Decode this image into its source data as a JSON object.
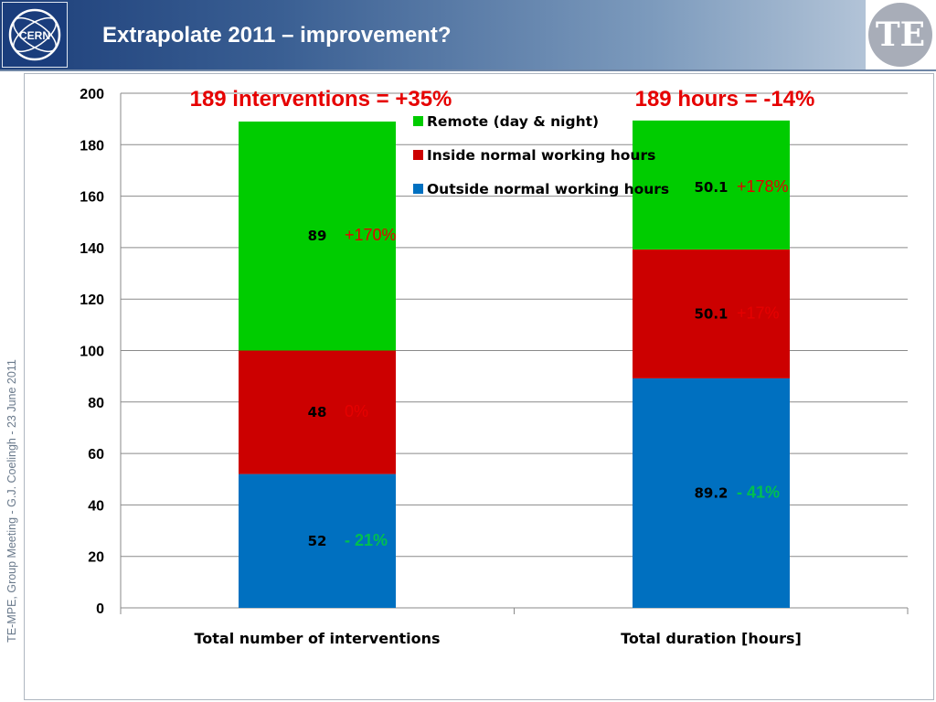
{
  "header": {
    "title": "Extrapolate 2011 – improvement?",
    "cern_logo_text": "CERN",
    "te_logo_text": "TE"
  },
  "sidebar": {
    "footer_text": "TE-MPE, Group Meeting - G.J. Coelingh -  23 June 2011"
  },
  "colors": {
    "remote": "#00cc00",
    "inside": "#cc0000",
    "outside": "#0070c0",
    "annotation_red": "#e60000",
    "annotation_green": "#00c050"
  },
  "chart_data": {
    "type": "bar",
    "stacked": true,
    "categories": [
      "Total number of interventions",
      "Total duration [hours]"
    ],
    "series": [
      {
        "name": "Outside normal working hours",
        "values": [
          52,
          89.2
        ],
        "labels": [
          "52",
          "89.2"
        ],
        "changes": [
          "- 21%",
          "- 41%"
        ]
      },
      {
        "name": "Inside normal working hours",
        "values": [
          48,
          50.1
        ],
        "labels": [
          "48",
          "50.1"
        ],
        "changes": [
          "0%",
          "+17%"
        ]
      },
      {
        "name": "Remote (day & night)",
        "values": [
          89,
          50.1
        ],
        "labels": [
          "89",
          "50.1"
        ],
        "changes": [
          "+170%",
          "+178%"
        ]
      }
    ],
    "category_titles": [
      "189 interventions = +35%",
      "189 hours = -14%"
    ],
    "ylim": [
      0,
      200
    ],
    "yticks": [
      "0",
      "20",
      "40",
      "60",
      "80",
      "100",
      "120",
      "140",
      "160",
      "180",
      "200"
    ],
    "grid": true,
    "legend_position": "top-center"
  }
}
